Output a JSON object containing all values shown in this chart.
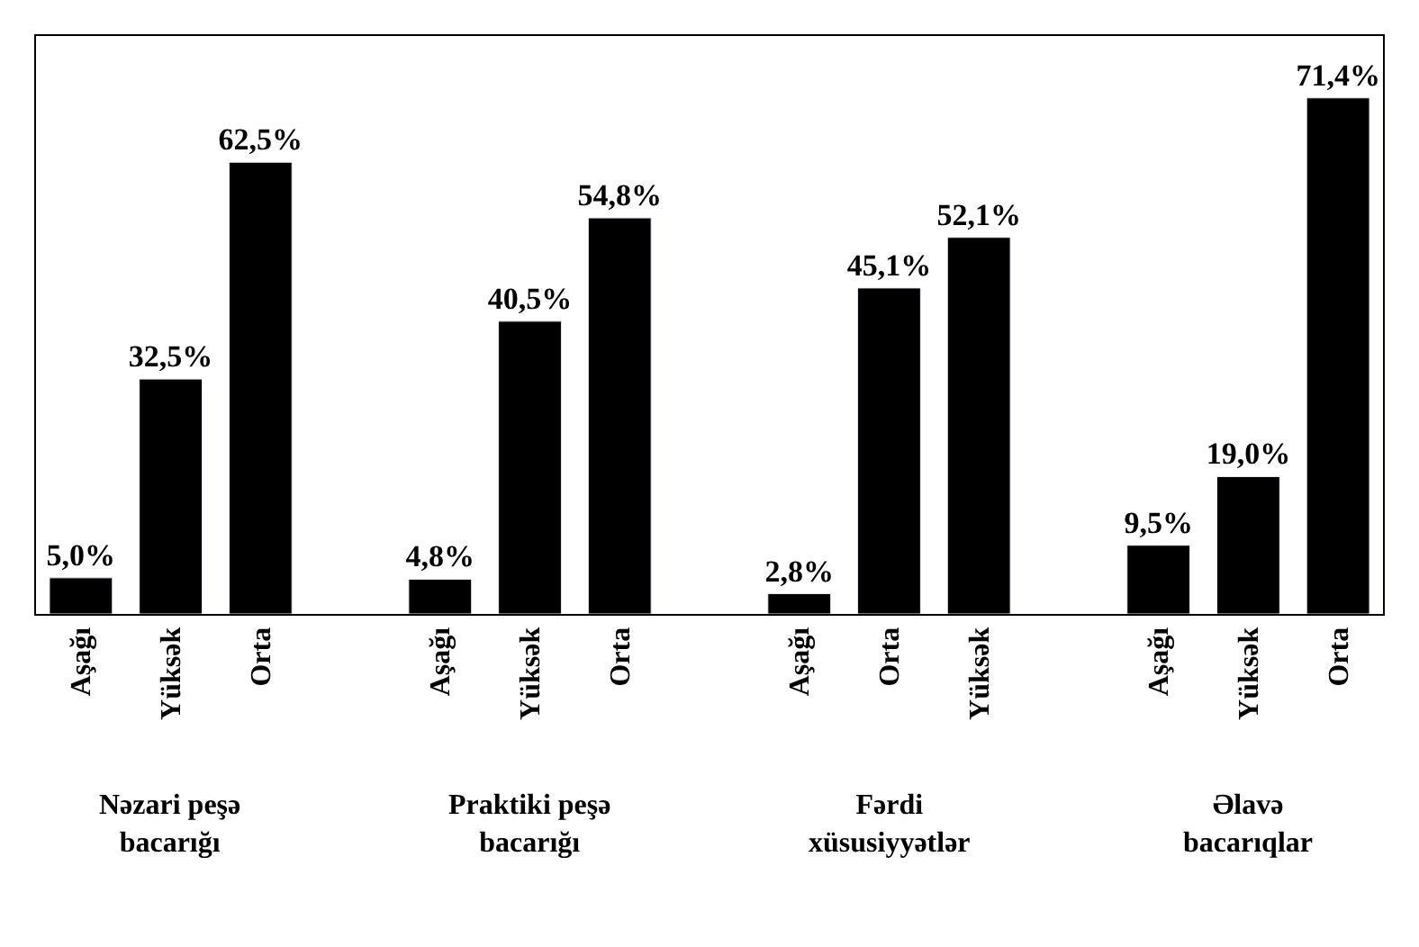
{
  "chart_data": {
    "type": "bar",
    "categories": [
      "Aşağı",
      "Yüksək",
      "Orta",
      null,
      "Aşağı",
      "Yüksək",
      "Orta",
      null,
      "Aşağı",
      "Orta",
      "Yüksək",
      null,
      "Aşağı",
      "Yüksək",
      "Orta"
    ],
    "values": [
      5.0,
      32.5,
      62.5,
      null,
      4.8,
      40.5,
      54.8,
      null,
      2.8,
      45.1,
      52.1,
      null,
      9.5,
      19.0,
      71.4
    ],
    "value_labels": [
      "5,0%",
      "32,5%",
      "62,5%",
      null,
      "4,8%",
      "40,5%",
      "54,8%",
      null,
      "2,8%",
      "45,1%",
      "52,1%",
      null,
      "9,5%",
      "19,0%",
      "71,4%"
    ],
    "color": "#000000",
    "annotations": [
      "Nəzari peşə bacarığı",
      "Praktiki peşə bacarığı",
      "Fərdi xüsusiyyətlər",
      "Əlavə bacarıqlar"
    ],
    "legend": false
  }
}
